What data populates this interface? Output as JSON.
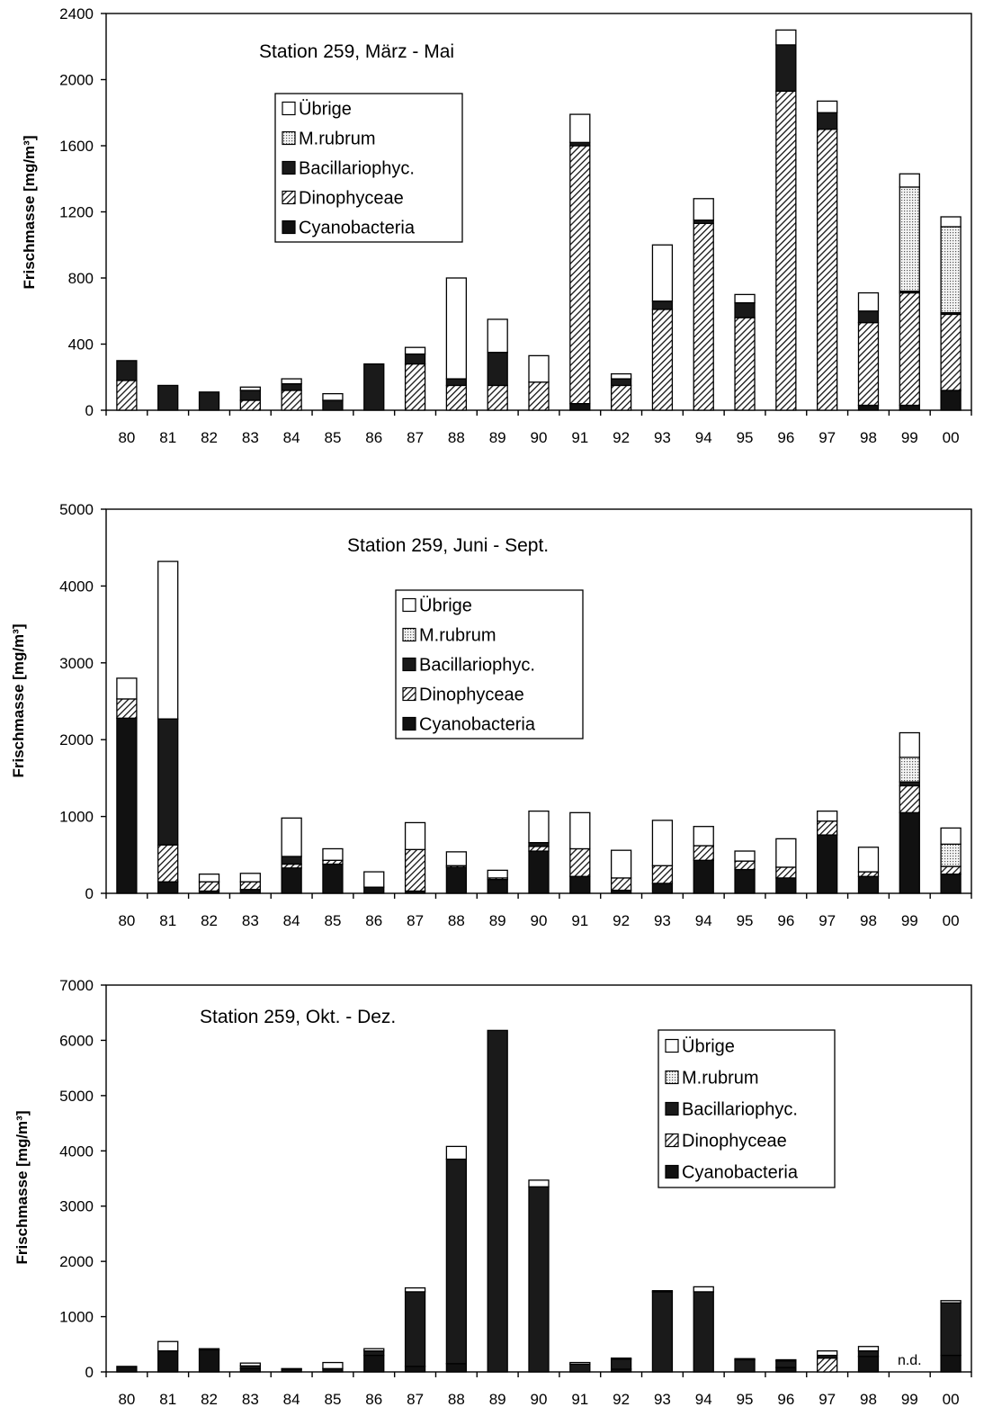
{
  "colors": {
    "cyanobacteria": "#111111",
    "dinophyceae": "hatch",
    "bacillariophyc": "#1a1a1a",
    "m_rubrum": "dots",
    "uebrige": "#ffffff"
  },
  "chart_data": [
    {
      "type": "bar",
      "stacked": true,
      "title": "Station 259, März - Mai",
      "ylabel": "Frischmasse [mg/m³]",
      "xlabel": "",
      "ylim": [
        0,
        2400
      ],
      "yticks": [
        0,
        400,
        800,
        1200,
        1600,
        2000,
        2400
      ],
      "legend_position": "upper-left",
      "legend": [
        "Übrige",
        "M.rubrum",
        "Bacillariophyc.",
        "Dinophyceae",
        "Cyanobacteria"
      ],
      "annotations": [],
      "categories": [
        "80",
        "81",
        "82",
        "83",
        "84",
        "85",
        "86",
        "87",
        "88",
        "89",
        "90",
        "91",
        "92",
        "93",
        "94",
        "95",
        "96",
        "97",
        "98",
        "99",
        "00"
      ],
      "series": [
        {
          "name": "Cyanobacteria",
          "values": [
            0,
            0,
            0,
            0,
            0,
            0,
            0,
            0,
            0,
            0,
            0,
            40,
            0,
            0,
            0,
            0,
            0,
            0,
            30,
            30,
            120
          ]
        },
        {
          "name": "Dinophyceae",
          "values": [
            180,
            0,
            0,
            60,
            120,
            0,
            0,
            280,
            150,
            150,
            170,
            1560,
            150,
            610,
            1130,
            560,
            1930,
            1700,
            500,
            680,
            460
          ]
        },
        {
          "name": "Bacillariophyc.",
          "values": [
            120,
            150,
            110,
            60,
            40,
            60,
            280,
            60,
            40,
            200,
            0,
            20,
            40,
            50,
            20,
            90,
            280,
            100,
            70,
            10,
            10
          ]
        },
        {
          "name": "M.rubrum",
          "values": [
            0,
            0,
            0,
            0,
            0,
            0,
            0,
            0,
            0,
            0,
            0,
            0,
            0,
            0,
            0,
            0,
            0,
            0,
            0,
            630,
            520
          ]
        },
        {
          "name": "Übrige",
          "values": [
            0,
            0,
            0,
            20,
            30,
            40,
            0,
            40,
            610,
            200,
            160,
            170,
            30,
            340,
            130,
            50,
            90,
            70,
            110,
            80,
            60
          ]
        }
      ]
    },
    {
      "type": "bar",
      "stacked": true,
      "title": "Station 259, Juni - Sept.",
      "ylabel": "Frischmasse [mg/m³]",
      "xlabel": "",
      "ylim": [
        0,
        5000
      ],
      "yticks": [
        0,
        1000,
        2000,
        3000,
        4000,
        5000
      ],
      "legend_position": "upper-center",
      "legend": [
        "Übrige",
        "M.rubrum",
        "Bacillariophyc.",
        "Dinophyceae",
        "Cyanobacteria"
      ],
      "annotations": [],
      "categories": [
        "80",
        "81",
        "82",
        "83",
        "84",
        "85",
        "86",
        "87",
        "88",
        "89",
        "90",
        "91",
        "92",
        "93",
        "94",
        "95",
        "96",
        "97",
        "98",
        "99",
        "00"
      ],
      "series": [
        {
          "name": "Cyanobacteria",
          "values": [
            2280,
            150,
            30,
            50,
            330,
            380,
            80,
            30,
            340,
            180,
            550,
            220,
            40,
            130,
            430,
            310,
            200,
            760,
            220,
            1050,
            250
          ]
        },
        {
          "name": "Dinophyceae",
          "values": [
            250,
            480,
            120,
            100,
            50,
            50,
            0,
            540,
            20,
            20,
            60,
            360,
            160,
            230,
            190,
            110,
            140,
            180,
            60,
            350,
            100
          ]
        },
        {
          "name": "Bacillariophyc.",
          "values": [
            0,
            1640,
            0,
            0,
            100,
            0,
            0,
            0,
            0,
            0,
            50,
            0,
            0,
            0,
            0,
            0,
            0,
            0,
            0,
            50,
            0
          ]
        },
        {
          "name": "M.rubrum",
          "values": [
            0,
            0,
            0,
            0,
            0,
            0,
            0,
            0,
            0,
            0,
            0,
            0,
            0,
            0,
            0,
            0,
            0,
            0,
            0,
            320,
            290
          ]
        },
        {
          "name": "Übrige",
          "values": [
            270,
            2050,
            100,
            110,
            500,
            150,
            200,
            350,
            180,
            100,
            410,
            470,
            360,
            590,
            250,
            130,
            370,
            130,
            320,
            320,
            210
          ]
        }
      ]
    },
    {
      "type": "bar",
      "stacked": true,
      "title": "Station 259, Okt. - Dez.",
      "ylabel": "Frischmasse [mg/m³]",
      "xlabel": "",
      "ylim": [
        0,
        7000
      ],
      "yticks": [
        0,
        1000,
        2000,
        3000,
        4000,
        5000,
        6000,
        7000
      ],
      "legend_position": "upper-right",
      "legend": [
        "Übrige",
        "M.rubrum",
        "Bacillariophyc.",
        "Dinophyceae",
        "Cyanobacteria"
      ],
      "annotations": [
        {
          "category": "99",
          "text": "n.d."
        }
      ],
      "categories": [
        "80",
        "81",
        "82",
        "83",
        "84",
        "85",
        "86",
        "87",
        "88",
        "89",
        "90",
        "91",
        "92",
        "93",
        "94",
        "95",
        "96",
        "97",
        "98",
        "99",
        "00"
      ],
      "series": [
        {
          "name": "Cyanobacteria",
          "values": [
            100,
            380,
            400,
            60,
            50,
            60,
            300,
            100,
            150,
            0,
            0,
            0,
            50,
            0,
            0,
            0,
            80,
            0,
            280,
            0,
            300
          ]
        },
        {
          "name": "Dinophyceae",
          "values": [
            0,
            0,
            0,
            0,
            0,
            0,
            0,
            0,
            0,
            0,
            0,
            0,
            0,
            0,
            0,
            0,
            0,
            250,
            0,
            0,
            0
          ]
        },
        {
          "name": "Bacillariophyc.",
          "values": [
            0,
            0,
            0,
            50,
            0,
            0,
            80,
            1350,
            3700,
            6180,
            3350,
            140,
            180,
            1450,
            1450,
            220,
            120,
            50,
            100,
            0,
            950
          ]
        },
        {
          "name": "M.rubrum",
          "values": [
            0,
            0,
            0,
            0,
            0,
            0,
            0,
            0,
            0,
            0,
            0,
            0,
            0,
            0,
            0,
            0,
            0,
            0,
            0,
            0,
            0
          ]
        },
        {
          "name": "Übrige",
          "values": [
            0,
            170,
            20,
            50,
            10,
            110,
            40,
            70,
            230,
            0,
            120,
            30,
            20,
            20,
            90,
            20,
            20,
            80,
            80,
            0,
            40
          ]
        }
      ]
    }
  ]
}
